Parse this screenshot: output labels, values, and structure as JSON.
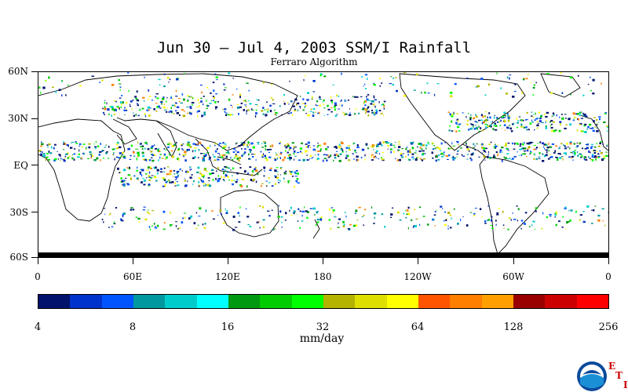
{
  "title": "Jun 30 – Jul 4, 2003 SSM/I Rainfall",
  "subtitle": "Ferraro Algorithm",
  "lat_labels": [
    "60N",
    "30N",
    "EQ",
    "30S",
    "60S"
  ],
  "lon_labels": [
    "0",
    "60E",
    "120E",
    "180",
    "120W",
    "60W",
    "0"
  ],
  "colorbar": {
    "colors": [
      "#00126b",
      "#0033cc",
      "#0055ff",
      "#00999f",
      "#00cccc",
      "#00ffff",
      "#00990f",
      "#00cc00",
      "#00ff00",
      "#b3b300",
      "#dede00",
      "#ffff00",
      "#ff5500",
      "#ff7f00",
      "#ffa000",
      "#990000",
      "#cc0000",
      "#ff0000"
    ],
    "tick_labels": [
      "4",
      "8",
      "16",
      "32",
      "64",
      "128",
      "256"
    ],
    "units": "mm/day"
  },
  "logo": {
    "name": "NOAA",
    "letters": [
      "E",
      "T",
      "I"
    ]
  }
}
